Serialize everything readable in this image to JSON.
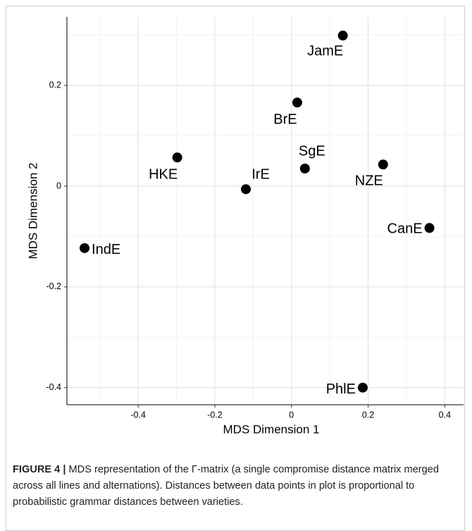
{
  "chart_data": {
    "type": "scatter",
    "x_label": "MDS Dimension 1",
    "y_label": "MDS Dimension 2",
    "points": [
      "JamE",
      "BrE",
      "HKE",
      "SgE",
      "NZE",
      "IrE",
      "CanE",
      "IndE",
      "PhlE"
    ],
    "x": [
      0.134,
      0.015,
      -0.298,
      0.035,
      0.239,
      -0.119,
      0.36,
      -0.54,
      0.186
    ],
    "y": [
      0.299,
      0.166,
      0.057,
      0.035,
      0.043,
      -0.006,
      -0.083,
      -0.123,
      -0.4
    ],
    "color": "#000000",
    "xlim": [
      -0.586,
      0.449
    ],
    "xticks": [
      -0.4,
      -0.2,
      0.0,
      0.2,
      0.4
    ],
    "ylim": [
      -0.434,
      0.336
    ],
    "yticks": [
      -0.4,
      -0.2,
      0.0,
      0.2
    ],
    "grid": true
  },
  "caption": {
    "label": "FIGURE 4 |",
    "text": "MDS representation of the Γ-matrix (a single compromise distance matrix merged across all lines and alternations). Distances between data points in plot is proportional to probabilistic grammar distances between varieties."
  }
}
